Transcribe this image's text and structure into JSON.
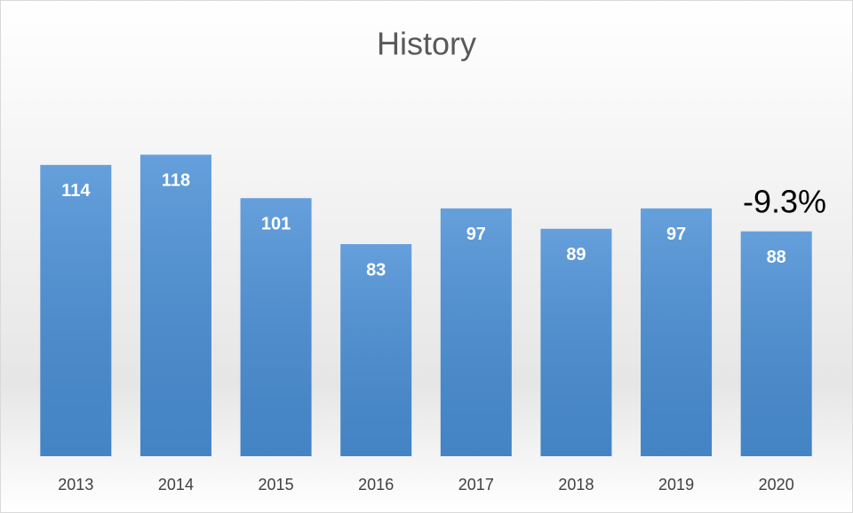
{
  "chart_data": {
    "type": "bar",
    "title": "History",
    "categories": [
      "2013",
      "2014",
      "2015",
      "2016",
      "2017",
      "2018",
      "2019",
      "2020"
    ],
    "values": [
      114,
      118,
      101,
      83,
      97,
      89,
      97,
      88
    ],
    "color": "#4a8fd6",
    "ylim": [
      0,
      140
    ],
    "annotation": "-9.3%"
  }
}
